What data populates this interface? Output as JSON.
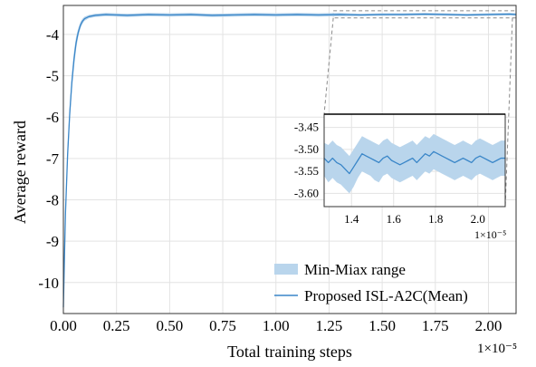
{
  "chart_data": [
    {
      "type": "area",
      "xlabel": "Total training steps",
      "ylabel": "Average reward",
      "x_multiplier_label": "1×10⁻⁵",
      "xlim": [
        0,
        2.13
      ],
      "ylim": [
        -10.75,
        -3.3
      ],
      "xticks": [
        {
          "value": 0.0,
          "label": "0.00"
        },
        {
          "value": 0.25,
          "label": "0.25"
        },
        {
          "value": 0.5,
          "label": "0.50"
        },
        {
          "value": 0.75,
          "label": "0.75"
        },
        {
          "value": 1.0,
          "label": "1.00"
        },
        {
          "value": 1.25,
          "label": "1.25"
        },
        {
          "value": 1.5,
          "label": "1.50"
        },
        {
          "value": 1.75,
          "label": "1.75"
        },
        {
          "value": 2.0,
          "label": "2.00"
        }
      ],
      "yticks": [
        {
          "value": -4,
          "label": "-4"
        },
        {
          "value": -5,
          "label": "-5"
        },
        {
          "value": -6,
          "label": "-6"
        },
        {
          "value": -7,
          "label": "-7"
        },
        {
          "value": -8,
          "label": "-8"
        },
        {
          "value": -9,
          "label": "-9"
        },
        {
          "value": -10,
          "label": "-10"
        }
      ],
      "grid": true,
      "legend_position": "bottom-right",
      "legend": {
        "band_label": "Min-Miax range",
        "line_label": "Proposed ISL-A2C(Mean)"
      },
      "series": [
        {
          "name": "Proposed ISL-A2C(Mean)",
          "color": "#3a86c8",
          "band_color": "#b9d5ec",
          "x": [
            0.0,
            0.005,
            0.01,
            0.02,
            0.03,
            0.04,
            0.05,
            0.06,
            0.07,
            0.08,
            0.09,
            0.1,
            0.12,
            0.15,
            0.2,
            0.3,
            0.4,
            0.5,
            0.6,
            0.7,
            0.8,
            0.9,
            1.0,
            1.1,
            1.2,
            1.3,
            1.4,
            1.5,
            1.6,
            1.7,
            1.8,
            1.9,
            2.0,
            2.1,
            2.13
          ],
          "y": [
            -10.6,
            -9.4,
            -8.3,
            -6.9,
            -5.9,
            -5.15,
            -4.6,
            -4.2,
            -3.95,
            -3.78,
            -3.68,
            -3.62,
            -3.57,
            -3.54,
            -3.52,
            -3.54,
            -3.52,
            -3.53,
            -3.52,
            -3.54,
            -3.53,
            -3.52,
            -3.53,
            -3.52,
            -3.53,
            -3.52,
            -3.53,
            -3.52,
            -3.52,
            -3.51,
            -3.52,
            -3.53,
            -3.52,
            -3.51,
            -3.52
          ],
          "min": [
            -10.7,
            -9.6,
            -8.5,
            -7.1,
            -6.1,
            -5.35,
            -4.8,
            -4.35,
            -4.05,
            -3.86,
            -3.74,
            -3.67,
            -3.61,
            -3.58,
            -3.56,
            -3.58,
            -3.56,
            -3.57,
            -3.56,
            -3.58,
            -3.57,
            -3.56,
            -3.57,
            -3.56,
            -3.57,
            -3.56,
            -3.56,
            -3.55,
            -3.55,
            -3.54,
            -3.55,
            -3.56,
            -3.55,
            -3.54,
            -3.55
          ],
          "max": [
            -10.5,
            -9.2,
            -8.1,
            -6.7,
            -5.7,
            -4.95,
            -4.4,
            -4.05,
            -3.85,
            -3.7,
            -3.62,
            -3.57,
            -3.53,
            -3.5,
            -3.48,
            -3.5,
            -3.48,
            -3.49,
            -3.48,
            -3.5,
            -3.49,
            -3.48,
            -3.49,
            -3.48,
            -3.49,
            -3.48,
            -3.5,
            -3.49,
            -3.49,
            -3.48,
            -3.49,
            -3.5,
            -3.49,
            -3.48,
            -3.49
          ]
        }
      ],
      "zoom_region": {
        "x": [
          1.27,
          2.13
        ],
        "y": [
          -3.6,
          -3.43
        ]
      }
    },
    {
      "type": "area",
      "role": "inset",
      "x_multiplier_label": "1×10⁻⁵",
      "xlim": [
        1.27,
        2.13
      ],
      "ylim": [
        -3.63,
        -3.42
      ],
      "xticks": [
        {
          "value": 1.4,
          "label": "1.4"
        },
        {
          "value": 1.6,
          "label": "1.6"
        },
        {
          "value": 1.8,
          "label": "1.8"
        },
        {
          "value": 2.0,
          "label": "2.0"
        }
      ],
      "yticks": [
        {
          "value": -3.45,
          "label": "-3.45"
        },
        {
          "value": -3.5,
          "label": "-3.50"
        },
        {
          "value": -3.55,
          "label": "-3.55"
        },
        {
          "value": -3.6,
          "label": "-3.60"
        }
      ],
      "grid": true,
      "series": [
        {
          "name": "Proposed ISL-A2C(Mean)",
          "color": "#3a86c8",
          "band_color": "#b9d5ec",
          "x": [
            1.27,
            1.29,
            1.31,
            1.33,
            1.35,
            1.37,
            1.39,
            1.41,
            1.43,
            1.45,
            1.47,
            1.49,
            1.51,
            1.53,
            1.55,
            1.57,
            1.59,
            1.61,
            1.63,
            1.65,
            1.67,
            1.69,
            1.71,
            1.73,
            1.75,
            1.77,
            1.79,
            1.81,
            1.83,
            1.85,
            1.87,
            1.89,
            1.91,
            1.93,
            1.95,
            1.97,
            1.99,
            2.01,
            2.03,
            2.05,
            2.07,
            2.09,
            2.11,
            2.13
          ],
          "y": [
            -3.52,
            -3.53,
            -3.52,
            -3.53,
            -3.535,
            -3.545,
            -3.555,
            -3.54,
            -3.525,
            -3.51,
            -3.515,
            -3.52,
            -3.525,
            -3.53,
            -3.52,
            -3.515,
            -3.525,
            -3.53,
            -3.535,
            -3.53,
            -3.525,
            -3.52,
            -3.53,
            -3.52,
            -3.51,
            -3.515,
            -3.505,
            -3.51,
            -3.515,
            -3.52,
            -3.525,
            -3.53,
            -3.525,
            -3.52,
            -3.525,
            -3.53,
            -3.52,
            -3.515,
            -3.52,
            -3.525,
            -3.53,
            -3.525,
            -3.52,
            -3.52
          ],
          "min": [
            -3.56,
            -3.575,
            -3.565,
            -3.575,
            -3.58,
            -3.59,
            -3.6,
            -3.585,
            -3.565,
            -3.55,
            -3.555,
            -3.56,
            -3.57,
            -3.575,
            -3.56,
            -3.555,
            -3.565,
            -3.57,
            -3.575,
            -3.57,
            -3.565,
            -3.56,
            -3.57,
            -3.56,
            -3.55,
            -3.555,
            -3.545,
            -3.55,
            -3.555,
            -3.56,
            -3.565,
            -3.57,
            -3.565,
            -3.56,
            -3.565,
            -3.57,
            -3.56,
            -3.555,
            -3.56,
            -3.565,
            -3.57,
            -3.565,
            -3.56,
            -3.56
          ],
          "max": [
            -3.485,
            -3.49,
            -3.48,
            -3.49,
            -3.495,
            -3.505,
            -3.515,
            -3.5,
            -3.485,
            -3.47,
            -3.475,
            -3.48,
            -3.485,
            -3.49,
            -3.48,
            -3.475,
            -3.485,
            -3.49,
            -3.495,
            -3.49,
            -3.485,
            -3.48,
            -3.49,
            -3.48,
            -3.47,
            -3.475,
            -3.465,
            -3.47,
            -3.475,
            -3.48,
            -3.485,
            -3.49,
            -3.485,
            -3.48,
            -3.485,
            -3.49,
            -3.48,
            -3.475,
            -3.48,
            -3.485,
            -3.49,
            -3.485,
            -3.48,
            -3.48
          ]
        }
      ]
    }
  ]
}
